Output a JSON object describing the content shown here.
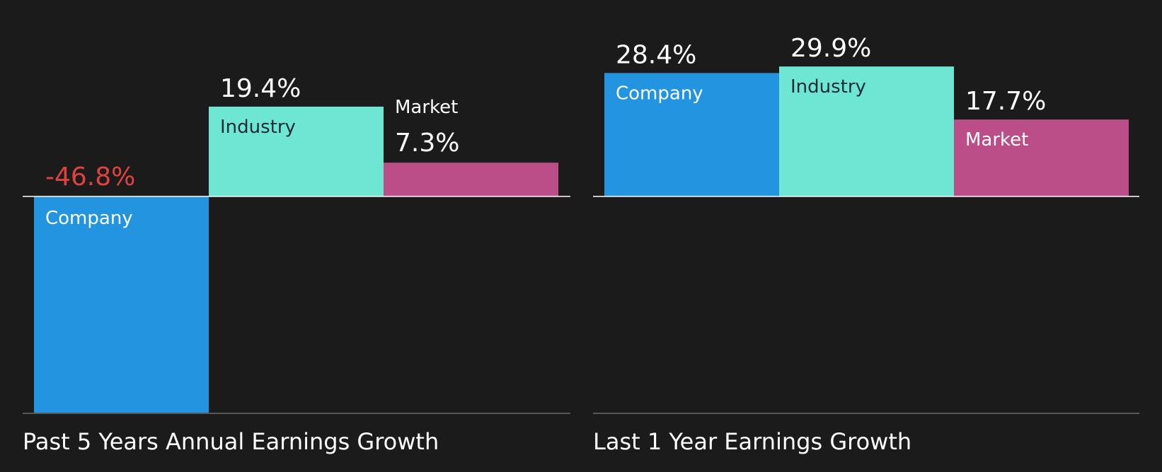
{
  "colors": {
    "background": "#1b1b1c",
    "company": "#2394e0",
    "industry": "#6de6d4",
    "market": "#bb4d88",
    "negative_value": "#e0433f",
    "value_text": "#ffffff",
    "dark_label": "#1e2b36",
    "light_label": "#ffffff",
    "baseline": "#ffffff",
    "bottom_rule": "#55585c"
  },
  "chart_data": [
    {
      "type": "bar",
      "title": "Past 5 Years Annual Earnings Growth",
      "categories": [
        "Company",
        "Industry",
        "Market"
      ],
      "values": [
        -46.8,
        19.4,
        7.3
      ],
      "value_labels": [
        "-46.8%",
        "19.4%",
        "7.3%"
      ],
      "unit": "%",
      "ylim": [
        -46.8,
        19.4
      ],
      "grid": false,
      "legend": "none"
    },
    {
      "type": "bar",
      "title": "Last 1 Year Earnings Growth",
      "categories": [
        "Company",
        "Industry",
        "Market"
      ],
      "values": [
        28.4,
        29.9,
        17.7
      ],
      "value_labels": [
        "28.4%",
        "29.9%",
        "17.7%"
      ],
      "unit": "%",
      "ylim": [
        0,
        29.9
      ],
      "grid": false,
      "legend": "none"
    }
  ]
}
